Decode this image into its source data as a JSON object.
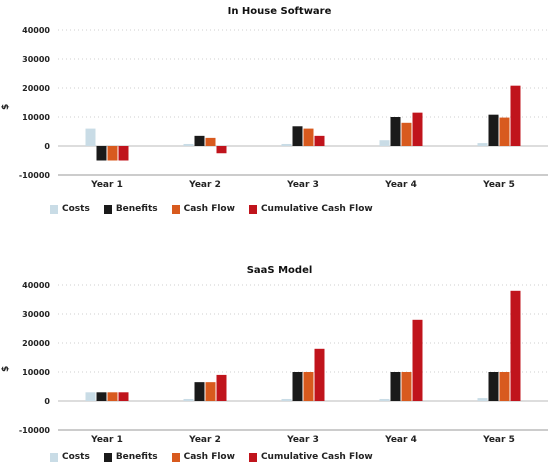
{
  "colors": {
    "costs": "#c9dce6",
    "benefits": "#1a1a1a",
    "cash_flow": "#d85a1e",
    "cumulative": "#c0141c",
    "axis": "#999999",
    "grid": "#cfcfcf"
  },
  "chart_data": [
    {
      "type": "bar",
      "title": "In House Software",
      "ylabel": "$",
      "xlabel": "",
      "ylim": [
        -10000,
        40000
      ],
      "yticks": [
        "-10000",
        "0",
        "10000",
        "20000",
        "30000",
        "40000"
      ],
      "ytick_values": [
        -10000,
        0,
        10000,
        20000,
        30000,
        40000
      ],
      "categories": [
        "Year 1",
        "Year 2",
        "Year 3",
        "Year 4",
        "Year 5"
      ],
      "series": [
        {
          "name": "Costs",
          "values": [
            6000,
            700,
            700,
            2000,
            1000
          ]
        },
        {
          "name": "Benefits",
          "values": [
            -5000,
            3500,
            6800,
            10000,
            10800
          ]
        },
        {
          "name": "Cash Flow",
          "values": [
            -5000,
            2800,
            6000,
            8000,
            9800
          ]
        },
        {
          "name": "Cumulative Cash Flow",
          "values": [
            -5000,
            -2500,
            3500,
            11500,
            20800
          ]
        }
      ],
      "legend": "bottom-left",
      "grid": true
    },
    {
      "type": "bar",
      "title": "SaaS Model",
      "ylabel": "$",
      "xlabel": "",
      "ylim": [
        -10000,
        40000
      ],
      "yticks": [
        "-10000",
        "0",
        "10000",
        "20000",
        "30000",
        "40000"
      ],
      "ytick_values": [
        -10000,
        0,
        10000,
        20000,
        30000,
        40000
      ],
      "categories": [
        "Year 1",
        "Year 2",
        "Year 3",
        "Year 4",
        "Year 5"
      ],
      "series": [
        {
          "name": "Costs",
          "values": [
            3000,
            700,
            700,
            700,
            1000
          ]
        },
        {
          "name": "Benefits",
          "values": [
            3000,
            6500,
            10000,
            10000,
            10000
          ]
        },
        {
          "name": "Cash Flow",
          "values": [
            3000,
            6500,
            10000,
            10000,
            10000
          ]
        },
        {
          "name": "Cumulative Cash Flow",
          "values": [
            3000,
            9000,
            18000,
            28000,
            38000
          ]
        }
      ],
      "legend": "bottom-left",
      "grid": true
    }
  ]
}
